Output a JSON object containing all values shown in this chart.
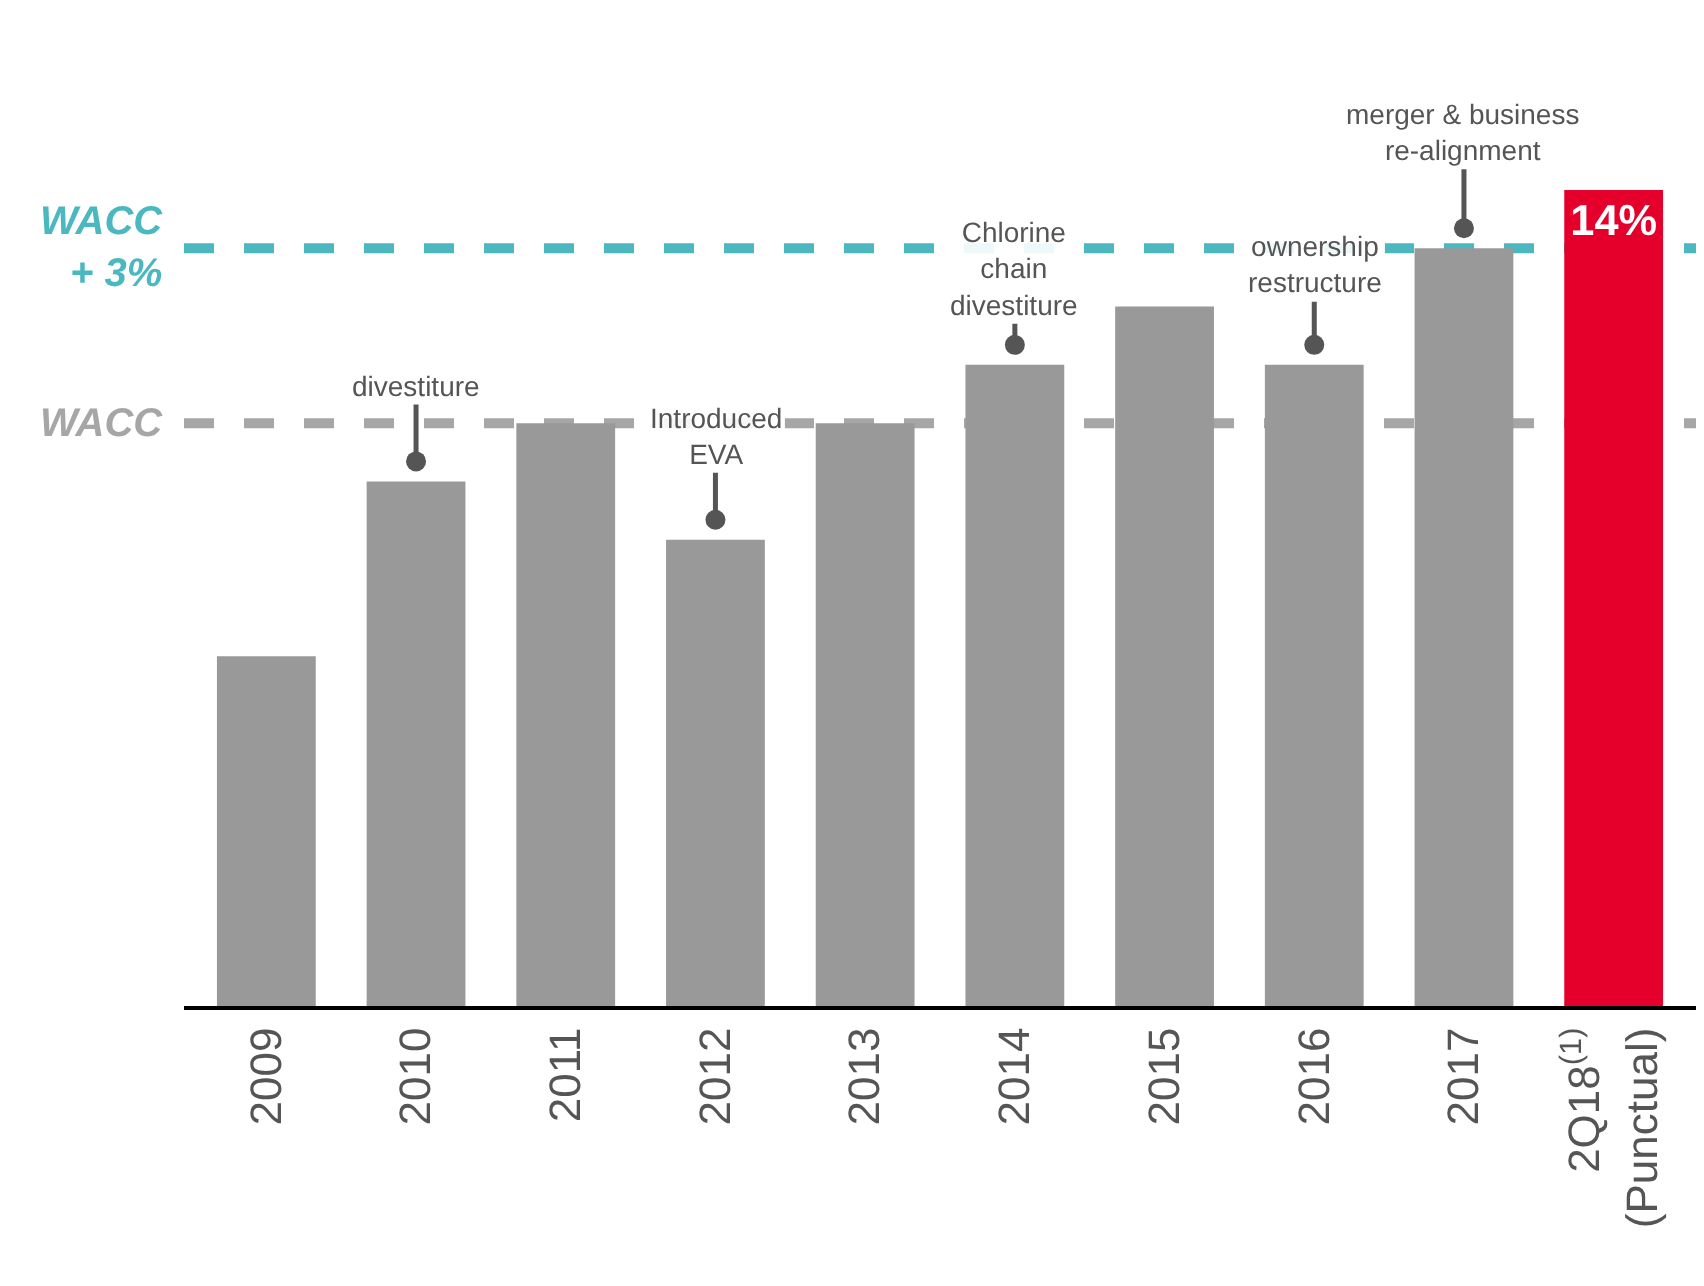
{
  "chart_data": {
    "type": "bar",
    "ylim": [
      0,
      14
    ],
    "categories": [
      "2009",
      "2010",
      "2011",
      "2012",
      "2013",
      "2014",
      "2015",
      "2016",
      "2017",
      "2Q18$^{(1)}$\n(Punctual)"
    ],
    "values": [
      6,
      9,
      10,
      8,
      10,
      11,
      12,
      11,
      13,
      14
    ],
    "colors": [
      "#999999",
      "#999999",
      "#999999",
      "#999999",
      "#999999",
      "#999999",
      "#999999",
      "#999999",
      "#999999",
      "#e4002b"
    ],
    "value_labels": [
      null,
      null,
      null,
      null,
      null,
      null,
      null,
      null,
      null,
      "14%"
    ],
    "ref_lines": [
      {
        "axis": "y",
        "value": 10,
        "label": "WACC",
        "color": "#a6a6a6",
        "line_style": "dashed"
      },
      {
        "axis": "y",
        "value": 13,
        "label": "WACC\n+ 3%",
        "color": "#4bb8c0",
        "line_style": "dashed"
      }
    ],
    "annotations": [
      {
        "text": "divestiture",
        "x": "2010",
        "y": 9
      },
      {
        "text": "Introduced\nEVA",
        "x": "2012",
        "y": 8
      },
      {
        "text": "Chlorine\nchain\ndivestiture",
        "x": "2014",
        "y": 11
      },
      {
        "text": "ownership\nrestructure",
        "x": "2016",
        "y": 11
      },
      {
        "text": "merger & business\nre-alignment",
        "x": "2017",
        "y": 13
      }
    ]
  }
}
